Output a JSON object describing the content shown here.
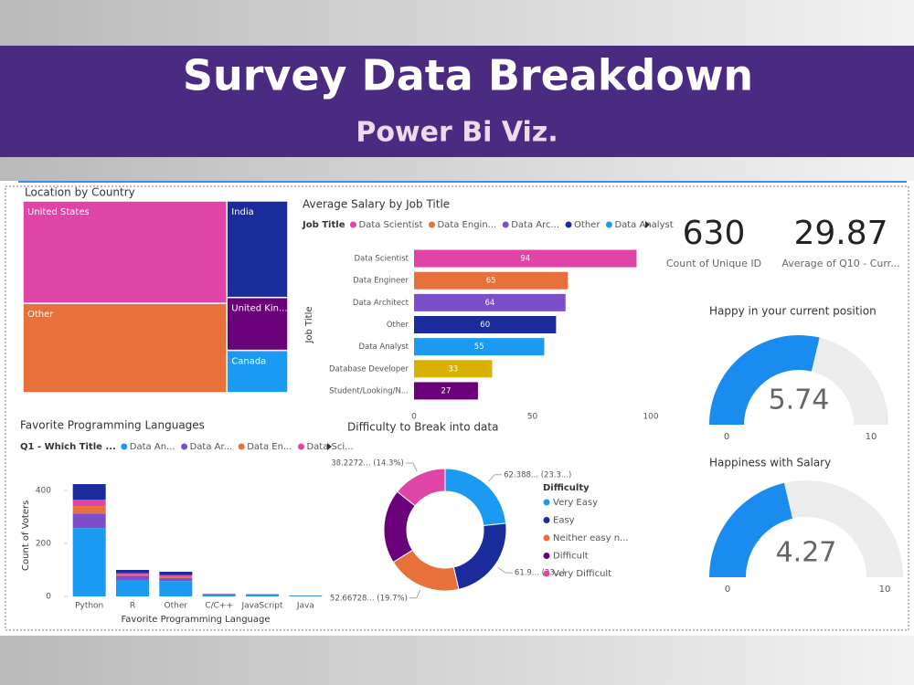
{
  "header": {
    "title": "Survey Data Breakdown",
    "subtitle": "Power Bi Viz."
  },
  "chart_data": [
    {
      "type": "treemap",
      "title": "Location by Country",
      "categories": [
        "United States",
        "Other",
        "India",
        "United Kin...",
        "Canada"
      ],
      "values": [
        259,
        226,
        73,
        40,
        32
      ],
      "colors": [
        "#e044a7",
        "#e8703a",
        "#1a2c9c",
        "#6b007b",
        "#1a9af0"
      ]
    },
    {
      "type": "hbar",
      "title": "Average Salary by Job Title",
      "legend_title": "Job Title",
      "legend": [
        {
          "name": "Data Scientist",
          "color": "#e044a7"
        },
        {
          "name": "Data Engin...",
          "color": "#e8703a"
        },
        {
          "name": "Data Arc...",
          "color": "#7b4fc9"
        },
        {
          "name": "Other",
          "color": "#1a2c9c"
        },
        {
          "name": "Data Analyst",
          "color": "#1a9af0"
        }
      ],
      "y_label": "Job Title",
      "categories": [
        "Data Scientist",
        "Data Engineer",
        "Data Architect",
        "Other",
        "Data Analyst",
        "Database Developer",
        "Student/Looking/N..."
      ],
      "values": [
        94,
        65,
        64,
        60,
        55,
        33,
        27
      ],
      "colors": [
        "#e044a7",
        "#e8703a",
        "#7b4fc9",
        "#1a2c9c",
        "#1a9af0",
        "#d9b100",
        "#6b007b"
      ],
      "xlim": [
        0,
        100
      ],
      "xticks": [
        0,
        50,
        100
      ]
    },
    {
      "type": "stacked_column",
      "title": "Favorite Programming Languages",
      "legend_title": "Q1 - Which Title ...",
      "x_label": "Favorite Programming Language",
      "y_label": "Count of Voters",
      "categories": [
        "Python",
        "R",
        "Other",
        "C/C++",
        "JavaScript",
        "Java"
      ],
      "series": [
        {
          "name": "Data An...",
          "color": "#1a9af0",
          "values": [
            258,
            62,
            58,
            7,
            5,
            2
          ]
        },
        {
          "name": "Data Ar...",
          "color": "#7b4fc9",
          "values": [
            55,
            16,
            12,
            1,
            2,
            0
          ]
        },
        {
          "name": "Data En...",
          "color": "#e8703a",
          "values": [
            28,
            4,
            6,
            1,
            0,
            0
          ]
        },
        {
          "name": "Data Sci...",
          "color": "#e044a7",
          "values": [
            24,
            6,
            5,
            0,
            0,
            0
          ]
        },
        {
          "color": "#1a2c9c",
          "values": [
            59,
            12,
            12,
            1,
            1,
            1
          ]
        }
      ],
      "ylim": [
        0,
        460
      ],
      "yticks": [
        0,
        200,
        400
      ]
    },
    {
      "type": "donut",
      "title": "Difficulty to Break into data",
      "legend_title": "Difficulty",
      "categories": [
        "Very Easy",
        "Easy",
        "Neither easy n...",
        "Difficult",
        "Very Difficult"
      ],
      "values": [
        62.388,
        61.9,
        52.66728,
        52.5,
        38.2272
      ],
      "value_labels": [
        "62.388... (23.3...)",
        "61.9... (23...)",
        "52.66728... (19.7%)",
        null,
        "38.2272... (14.3%)"
      ],
      "colors": [
        "#1a9af0",
        "#1a2c9c",
        "#e8703a",
        "#6b007b",
        "#e044a7"
      ]
    },
    {
      "type": "card",
      "value": 630,
      "label": "Count of Unique ID"
    },
    {
      "type": "card",
      "value": 29.87,
      "label": "Average of Q10 - Curr..."
    },
    {
      "type": "gauge",
      "title": "Happy in your current position",
      "value": 5.74,
      "min": 0,
      "max": 10,
      "color": "#1a8cf0"
    },
    {
      "type": "gauge",
      "title": "Happiness with Salary",
      "value": 4.27,
      "min": 0,
      "max": 10,
      "color": "#1a8cf0"
    }
  ]
}
